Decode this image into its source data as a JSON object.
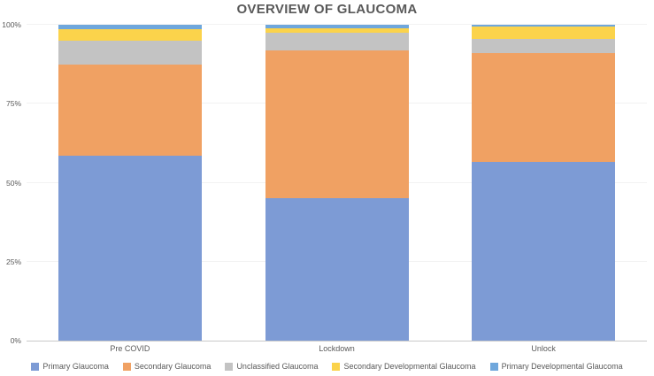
{
  "title": "OVERVIEW OF GLAUCOMA",
  "chart_data": {
    "type": "bar",
    "subtype": "100%-stacked-column",
    "title": "OVERVIEW OF GLAUCOMA",
    "categories": [
      "Pre COVID",
      "Lockdown",
      "Unlock"
    ],
    "series": [
      {
        "name": "Primary Glaucoma",
        "color": "#7d9bd5",
        "values": [
          58.5,
          45,
          56.5
        ]
      },
      {
        "name": "Secondary Glaucoma",
        "color": "#f0a163",
        "values": [
          29,
          47,
          34.5
        ]
      },
      {
        "name": "Unclassified Glaucoma",
        "color": "#c3c3c3",
        "values": [
          7.5,
          5.5,
          4.5
        ]
      },
      {
        "name": "Secondary Developmental Glaucoma",
        "color": "#fbd34b",
        "values": [
          3.5,
          1.5,
          4
        ]
      },
      {
        "name": "Primary Developmental Glaucoma",
        "color": "#6fa7dc",
        "values": [
          1.5,
          1,
          0.5
        ]
      }
    ],
    "xlabel": "",
    "ylabel": "",
    "ylim": [
      0,
      100
    ],
    "y_ticks": [
      {
        "label": "0%",
        "value": 0
      },
      {
        "label": "25%",
        "value": 25
      },
      {
        "label": "50%",
        "value": 50
      },
      {
        "label": "75%",
        "value": 75
      },
      {
        "label": "100%",
        "value": 100
      }
    ],
    "grid": false,
    "legend_position": "bottom"
  }
}
